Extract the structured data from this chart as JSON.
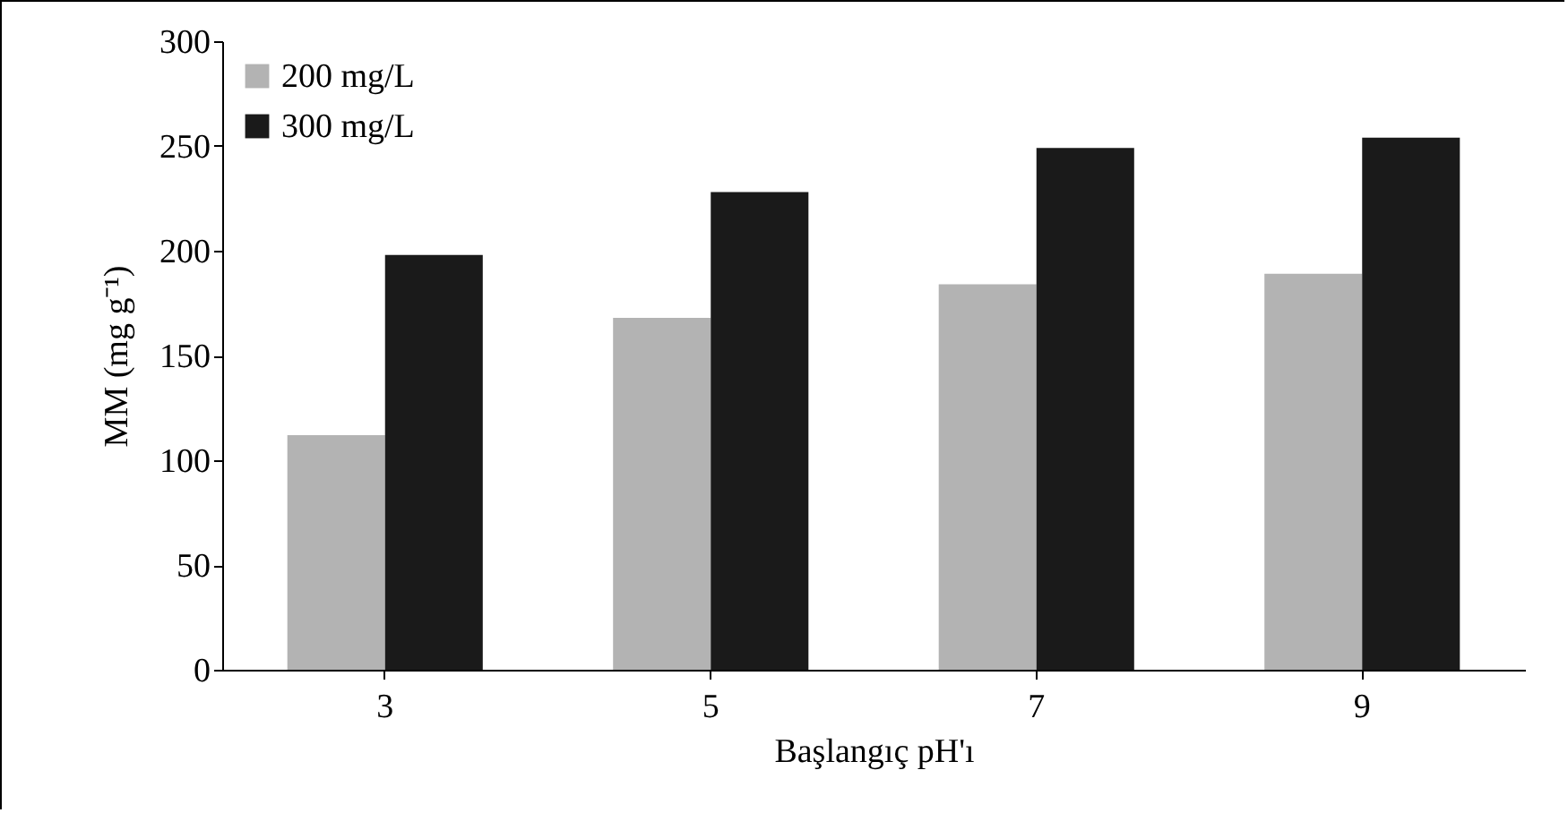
{
  "chart_data": {
    "type": "bar",
    "xlabel": "Başlangıç pH'ı",
    "ylabel": "MM (mg g⁻¹)",
    "categories": [
      "3",
      "5",
      "7",
      "9"
    ],
    "series": [
      {
        "name": "200 mg/L",
        "color": "#b3b3b3",
        "values": [
          112,
          168,
          184,
          189
        ]
      },
      {
        "name": "300 mg/L",
        "color": "#1a1a1a",
        "values": [
          198,
          228,
          249,
          254
        ]
      }
    ],
    "ylim": [
      0,
      300
    ],
    "yticks": [
      0,
      50,
      100,
      150,
      200,
      250,
      300
    ],
    "grid": false,
    "legend": "top left"
  }
}
